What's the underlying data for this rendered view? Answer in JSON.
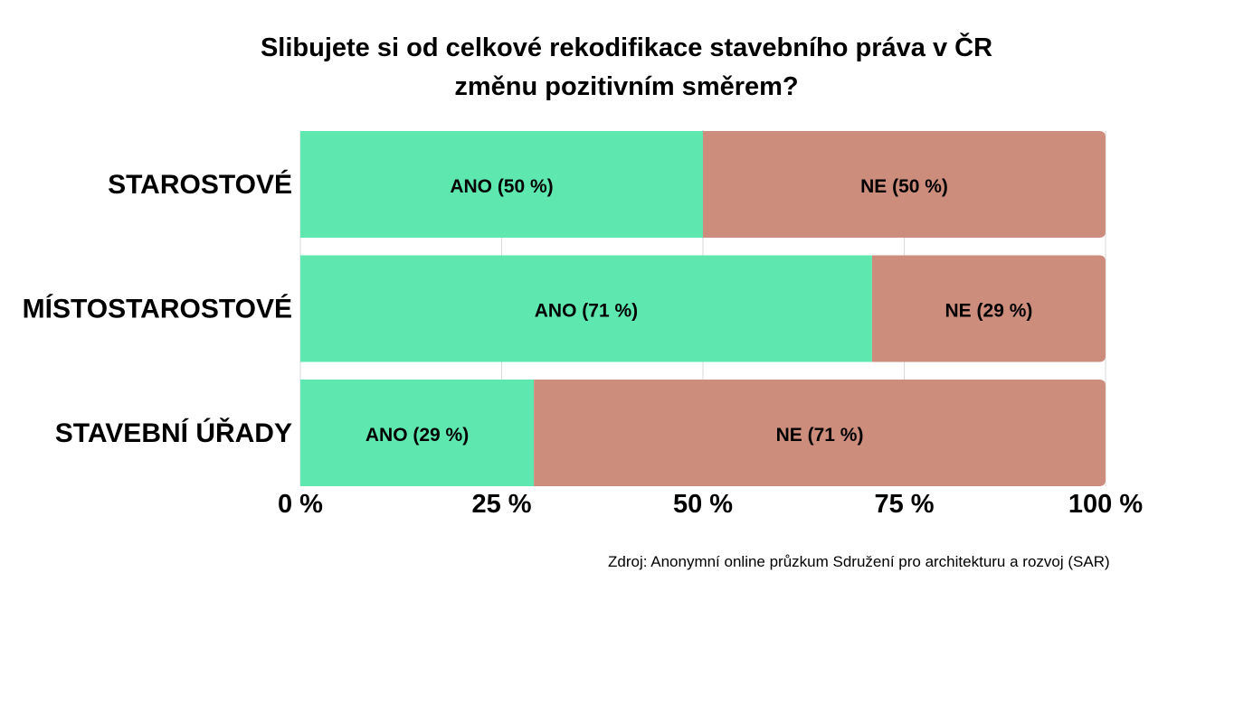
{
  "chart_data": {
    "type": "bar",
    "orientation": "horizontal",
    "stacked": true,
    "title_lines": [
      "Slibujete si od celkové rekodifikace stavebního práva v ČR",
      "změnu pozitivním směrem?"
    ],
    "categories": [
      "STAROSTOVÉ",
      "MÍSTOSTAROSTOVÉ",
      "STAVEBNÍ ÚŘADY"
    ],
    "series": [
      {
        "key": "ano",
        "color": "#5ee8b0",
        "values": [
          50,
          71,
          29
        ],
        "data_labels": [
          "ANO (50 %)",
          "ANO (71 %)",
          "ANO (29 %)"
        ]
      },
      {
        "key": "ne",
        "color": "#cd8d7d",
        "values": [
          50,
          29,
          71
        ],
        "data_labels": [
          "NE (50 %)",
          "NE (29 %)",
          "NE (71 %)"
        ]
      }
    ],
    "xlim": [
      0,
      100
    ],
    "x_ticks": [
      0,
      25,
      50,
      75,
      100
    ],
    "x_tick_labels": [
      "0 %",
      "25 %",
      "50 %",
      "75 %",
      "100 %"
    ],
    "grid": true,
    "legend": "none",
    "source": "Zdroj: Anonymní online průzkum Sdružení pro architekturu a rozvoj (SAR)"
  }
}
